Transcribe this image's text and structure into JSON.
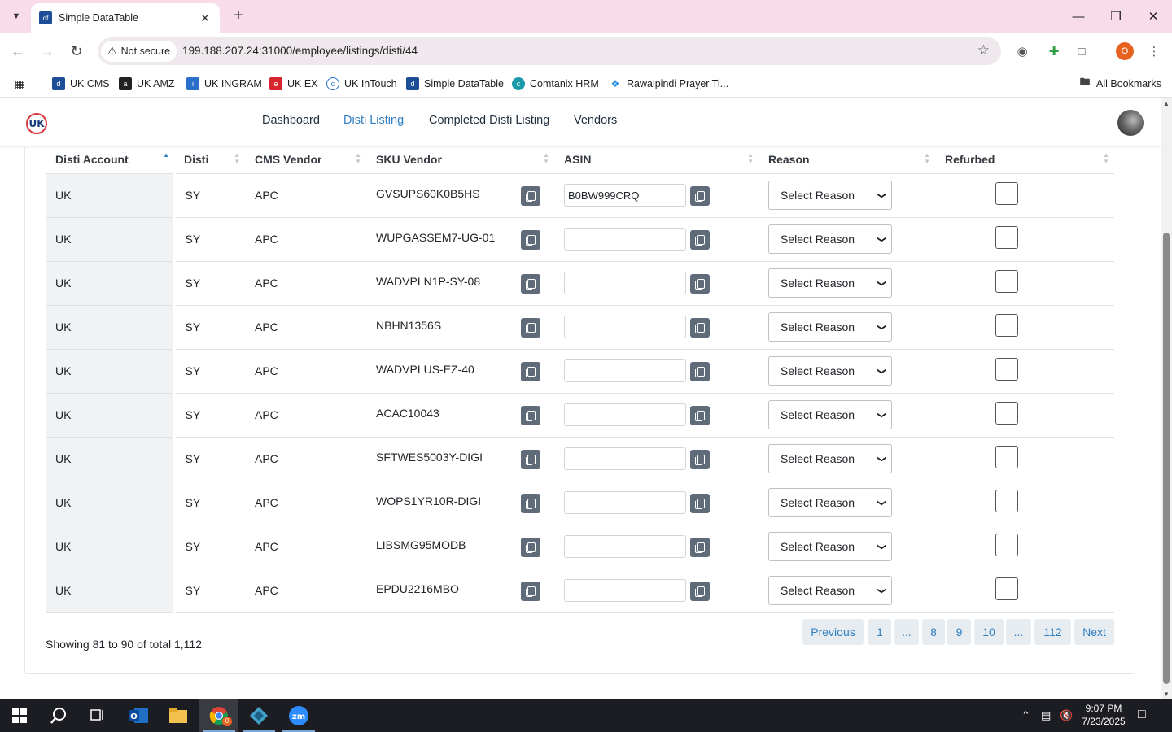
{
  "browser": {
    "tab_title": "Simple DataTable",
    "security_label": "Not secure",
    "url": "199.188.207.24:31000/employee/listings/disti/44",
    "bookmarks": [
      "UK CMS",
      "UK AMZ",
      "UK INGRAM",
      "UK EX",
      "UK InTouch",
      "Simple DataTable",
      "Comtanix HRM",
      "Rawalpindi Prayer Ti..."
    ],
    "all_bookmarks": "All Bookmarks",
    "profile_initial": "O"
  },
  "nav": {
    "logo": "UK",
    "links": [
      "Dashboard",
      "Disti Listing",
      "Completed Disti Listing",
      "Vendors"
    ],
    "active": "Disti Listing"
  },
  "table": {
    "columns": [
      "Disti Account",
      "Disti",
      "CMS Vendor",
      "SKU Vendor",
      "ASIN",
      "Reason",
      "Refurbed"
    ],
    "sorted_column": "Disti Account",
    "sort_direction": "ascending",
    "rows": [
      {
        "account": "UK",
        "disti": "SY",
        "vendor": "APC",
        "sku": "GVSUPS60K0B5HS",
        "asin": "B0BW999CRQ",
        "reason": "Select Reason",
        "refurbed": false
      },
      {
        "account": "UK",
        "disti": "SY",
        "vendor": "APC",
        "sku": "WUPGASSEM7-UG-01",
        "asin": "",
        "reason": "Select Reason",
        "refurbed": false
      },
      {
        "account": "UK",
        "disti": "SY",
        "vendor": "APC",
        "sku": "WADVPLN1P-SY-08",
        "asin": "",
        "reason": "Select Reason",
        "refurbed": false
      },
      {
        "account": "UK",
        "disti": "SY",
        "vendor": "APC",
        "sku": "NBHN1356S",
        "asin": "",
        "reason": "Select Reason",
        "refurbed": false
      },
      {
        "account": "UK",
        "disti": "SY",
        "vendor": "APC",
        "sku": "WADVPLUS-EZ-40",
        "asin": "",
        "reason": "Select Reason",
        "refurbed": false
      },
      {
        "account": "UK",
        "disti": "SY",
        "vendor": "APC",
        "sku": "ACAC10043",
        "asin": "",
        "reason": "Select Reason",
        "refurbed": false
      },
      {
        "account": "UK",
        "disti": "SY",
        "vendor": "APC",
        "sku": "SFTWES5003Y-DIGI",
        "asin": "",
        "reason": "Select Reason",
        "refurbed": false
      },
      {
        "account": "UK",
        "disti": "SY",
        "vendor": "APC",
        "sku": "WOPS1YR10R-DIGI",
        "asin": "",
        "reason": "Select Reason",
        "refurbed": false
      },
      {
        "account": "UK",
        "disti": "SY",
        "vendor": "APC",
        "sku": "LIBSMG95MODB",
        "asin": "",
        "reason": "Select Reason",
        "refurbed": false
      },
      {
        "account": "UK",
        "disti": "SY",
        "vendor": "APC",
        "sku": "EPDU2216MBO",
        "asin": "",
        "reason": "Select Reason",
        "refurbed": false
      }
    ]
  },
  "footer": {
    "showing": "Showing 81 to 90 of total 1,112",
    "pagination": [
      "Previous",
      "1",
      "...",
      "8",
      "9",
      "10",
      "...",
      "112",
      "Next"
    ]
  },
  "taskbar": {
    "time": "9:07 PM",
    "date": "7/23/2025",
    "chrome_badge": "0"
  },
  "colors": {
    "accent": "#2f7fc1",
    "tabstrip": "#f9dcea",
    "copy_button": "#5f6b78",
    "pager_bg": "#e7ecf1"
  }
}
